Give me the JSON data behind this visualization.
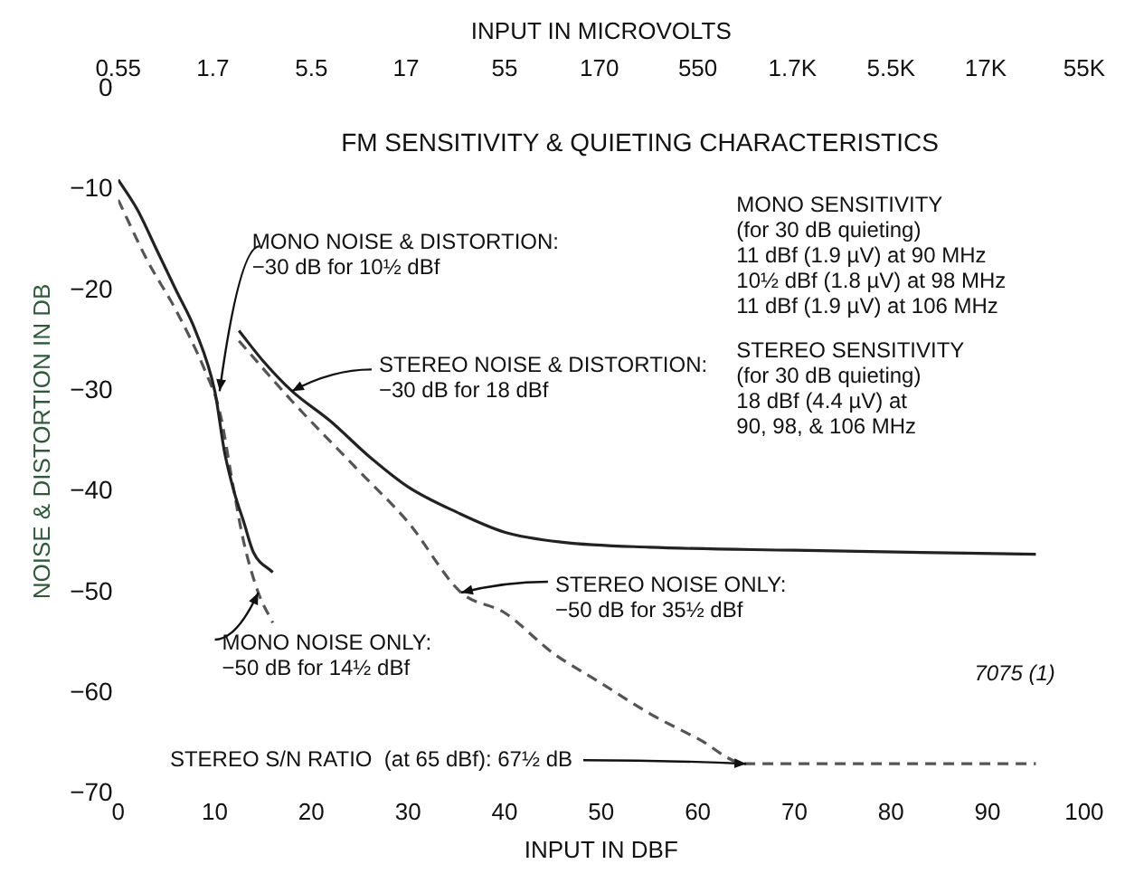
{
  "chart_data": {
    "type": "line",
    "title": "FM SENSITIVITY & QUIETING CHARACTERISTICS",
    "xlabel": "INPUT IN DBF",
    "ylabel": "NOISE & DISTORTION IN DB",
    "x2label": "INPUT IN MICROVOLTS",
    "xlim": [
      0,
      100
    ],
    "xticks": [
      0,
      10,
      20,
      30,
      40,
      50,
      60,
      70,
      80,
      90,
      100
    ],
    "x2lim": [
      0.55,
      55000
    ],
    "x2ticks": [
      0.55,
      1.7,
      5.5,
      17,
      55,
      170,
      550,
      {
        "value": 1700,
        "label": "1.7K"
      },
      {
        "value": 5500,
        "label": "5.5K"
      },
      {
        "value": 17000,
        "label": "17K"
      },
      {
        "value": 55000,
        "label": "55K"
      }
    ],
    "log": "x2",
    "ylim": [
      -70,
      0
    ],
    "yticks": [
      0,
      -10,
      -20,
      -30,
      -40,
      -50,
      -60,
      -70
    ],
    "grid": false,
    "legend": false,
    "marker": "none",
    "series": [
      {
        "color": "#222222",
        "line_style": "solid",
        "x": [
          0,
          2,
          4,
          6,
          8,
          10,
          11,
          12,
          13,
          14,
          16
        ],
        "values": [
          -9,
          -12,
          -16,
          -20,
          -24,
          -30,
          -36,
          -40,
          -43,
          -46,
          -48
        ]
      },
      {
        "color": "#555555",
        "line_style": "dashed",
        "x": [
          0,
          3,
          6,
          9,
          10.5,
          12,
          13,
          14.5,
          16
        ],
        "values": [
          -11,
          -17,
          -22,
          -28,
          -32,
          -40,
          -45,
          -50,
          -53
        ]
      },
      {
        "color": "#222222",
        "line_style": "solid",
        "x": [
          12.5,
          15,
          18,
          22,
          26,
          30,
          35,
          40,
          46,
          55,
          70,
          95
        ],
        "values": [
          -24,
          -27,
          -30,
          -33,
          -36.5,
          -39.5,
          -42,
          -44,
          -45,
          -45.5,
          -45.8,
          -46.2
        ]
      },
      {
        "color": "#555555",
        "line_style": "dashed",
        "x": [
          12.5,
          18,
          25,
          30,
          35.5,
          40,
          45,
          50,
          55,
          60,
          65,
          75,
          95
        ],
        "values": [
          -25,
          -31,
          -38,
          -43,
          -50,
          -52,
          -56,
          -59,
          -62,
          -64.5,
          -67,
          -67,
          -67
        ]
      }
    ],
    "annotations": [
      {
        "text": "MONO NOISE & DISTORTION:\n−30 dB for 10½ dBf",
        "x": 10.5,
        "y": -30
      },
      {
        "text": "STEREO NOISE & DISTORTION:\n−30 dB for 18 dBf",
        "x": 18,
        "y": -30
      },
      {
        "text": "STEREO NOISE ONLY:\n−50 dB for 35½ dBf",
        "x": 35.5,
        "y": -50
      },
      {
        "text": "MONO NOISE ONLY:\n−50 dB for 14½ dBf",
        "x": 14.5,
        "y": -50
      },
      {
        "text": "STEREO S/N RATIO  (at 65 dBf): 67½ dB",
        "x": 65,
        "y": -67
      },
      "MONO SENSITIVITY\n(for 30 dB quieting)\n11 dBf (1.9 µV) at 90 MHz\n10½ dBf (1.8 µV) at 98 MHz\n11 dBf (1.9 µV) at 106 MHz",
      "STEREO SENSITIVITY\n(for 30 dB quieting)\n18 dBf (4.4 µV) at\n90, 98, & 106 MHz",
      "7075 (1)"
    ]
  }
}
